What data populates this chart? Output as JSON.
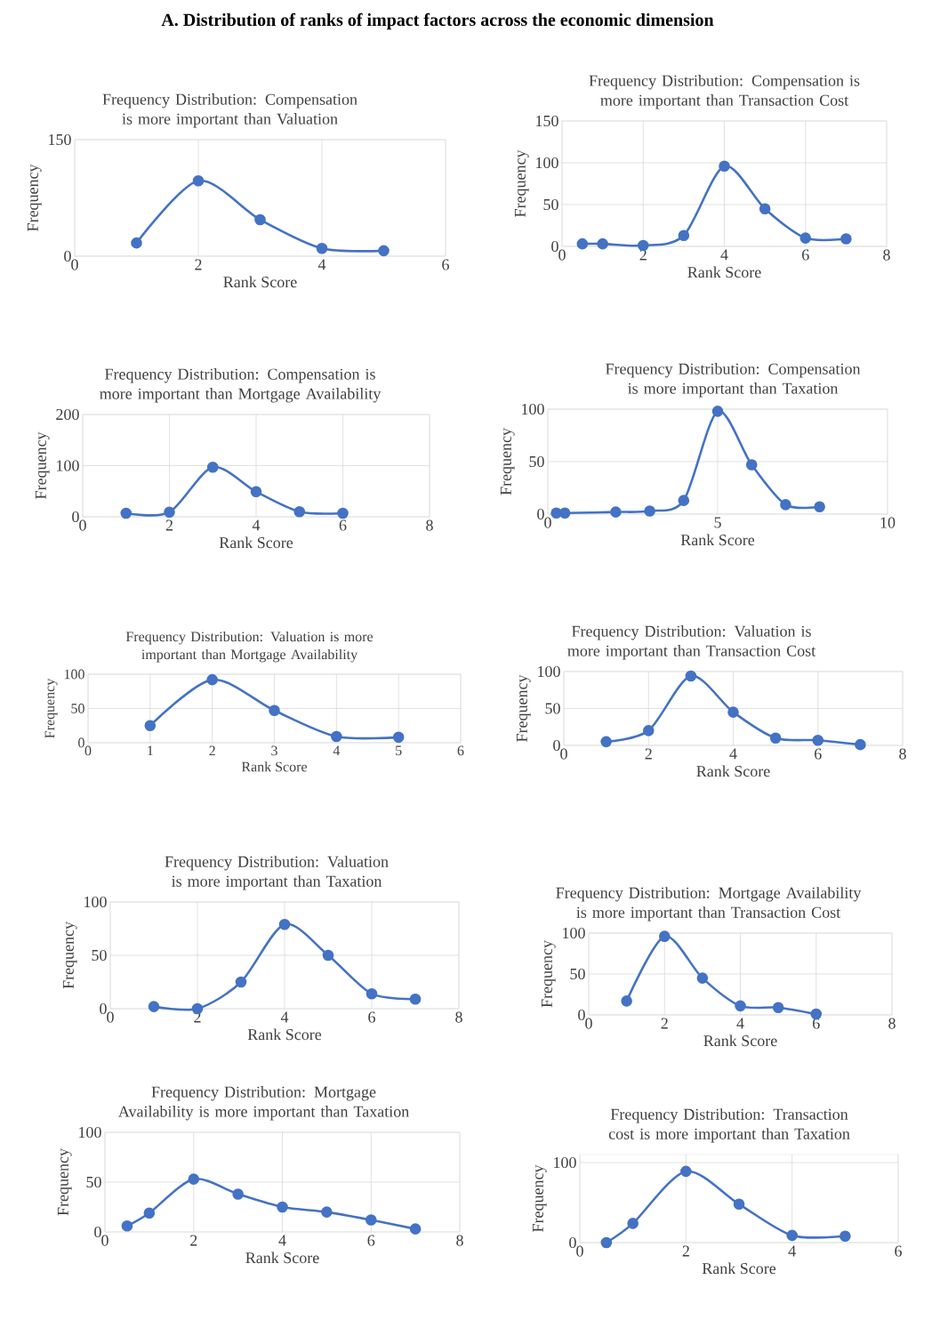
{
  "chart_data": [
    {
      "type": "line",
      "title": "Frequency Distribution: Compensation is more important than Valuation",
      "xlabel": "Rank Score",
      "ylabel": "Frequency",
      "annotations": [
        "A. Distribution of ranks of impact factors across the economic dimension"
      ],
      "x": [
        1,
        2,
        3,
        4,
        5
      ],
      "values": [
        17,
        97,
        47,
        10,
        7
      ],
      "color": "#4472c4",
      "xlim": [
        0,
        6
      ],
      "xticks": [
        0,
        2,
        4,
        6
      ],
      "ylim": [
        0,
        150
      ],
      "yticks": [
        0,
        150
      ],
      "grid": true,
      "marker": "circle"
    },
    {
      "type": "line",
      "title": "Frequency Distribution: Compensation is more important than Transaction Cost",
      "xlabel": "Rank Score",
      "ylabel": "Frequency",
      "x": [
        0.5,
        1,
        2,
        3,
        4,
        5,
        6,
        7
      ],
      "values": [
        3,
        3,
        1,
        13,
        96,
        45,
        10,
        9
      ],
      "color": "#4472c4",
      "xlim": [
        0,
        8
      ],
      "xticks": [
        0,
        2,
        4,
        6,
        8
      ],
      "ylim": [
        0,
        150
      ],
      "yticks": [
        0,
        50,
        100,
        150
      ],
      "grid": true,
      "marker": "circle"
    },
    {
      "type": "line",
      "title": "Frequency Distribution: Compensation is more important than Mortgage Availability",
      "xlabel": "Rank Score",
      "ylabel": "Frequency",
      "x": [
        1,
        2,
        3,
        4,
        5,
        6
      ],
      "values": [
        7,
        9,
        97,
        49,
        10,
        7
      ],
      "color": "#4472c4",
      "xlim": [
        0,
        8
      ],
      "xticks": [
        0,
        2,
        4,
        6,
        8
      ],
      "ylim": [
        0,
        200
      ],
      "yticks": [
        0,
        100,
        200
      ],
      "grid": true,
      "marker": "circle"
    },
    {
      "type": "line",
      "title": "Frequency Distribution: Compensation is more important than Taxation",
      "xlabel": "Rank Score",
      "ylabel": "Frequency",
      "x": [
        0.25,
        0.5,
        2,
        3,
        4,
        5,
        6,
        7,
        8
      ],
      "values": [
        1,
        1,
        2,
        3,
        13,
        98,
        47,
        9,
        7
      ],
      "color": "#4472c4",
      "xlim": [
        0,
        10
      ],
      "xticks": [
        0,
        5,
        10
      ],
      "ylim": [
        0,
        100
      ],
      "yticks": [
        0,
        50,
        100
      ],
      "grid": true,
      "marker": "circle"
    },
    {
      "type": "line",
      "title": "Frequency Distribution: Valuation is more important than Mortgage Availability",
      "xlabel": "Rank Score",
      "ylabel": "Frequency",
      "x": [
        1,
        2,
        3,
        4,
        5
      ],
      "values": [
        25,
        92,
        47,
        9,
        8
      ],
      "color": "#4472c4",
      "xlim": [
        0,
        6
      ],
      "xticks": [
        0,
        1,
        2,
        3,
        4,
        5,
        6
      ],
      "ylim": [
        0,
        100
      ],
      "yticks": [
        0,
        50,
        100
      ],
      "grid": true,
      "marker": "circle"
    },
    {
      "type": "line",
      "title": "Frequency Distribution: Valuation is more important than Transaction Cost",
      "xlabel": "Rank Score",
      "ylabel": "Frequency",
      "x": [
        1,
        2,
        3,
        4,
        5,
        6,
        7
      ],
      "values": [
        5,
        20,
        94,
        45,
        10,
        7,
        1
      ],
      "color": "#4472c4",
      "xlim": [
        0,
        8
      ],
      "xticks": [
        0,
        2,
        4,
        6,
        8
      ],
      "ylim": [
        0,
        100
      ],
      "yticks": [
        0,
        50,
        100
      ],
      "grid": true,
      "marker": "circle"
    },
    {
      "type": "line",
      "title": "Frequency Distribution: Valuation is more important than Taxation",
      "xlabel": "Rank Score",
      "ylabel": "Frequency",
      "x": [
        1,
        2,
        3,
        4,
        5,
        6,
        7
      ],
      "values": [
        2,
        0,
        25,
        79,
        50,
        14,
        9
      ],
      "color": "#4472c4",
      "xlim": [
        0,
        8
      ],
      "xticks": [
        0,
        2,
        4,
        6,
        8
      ],
      "ylim": [
        0,
        100
      ],
      "yticks": [
        0,
        50,
        100
      ],
      "grid": true,
      "marker": "circle"
    },
    {
      "type": "line",
      "title": "Frequency Distribution: Mortgage Availability is more important than Transaction Cost",
      "xlabel": "Rank Score",
      "ylabel": "Frequency",
      "x": [
        1,
        2,
        3,
        4,
        5,
        6
      ],
      "values": [
        17,
        96,
        45,
        11,
        9,
        1
      ],
      "color": "#4472c4",
      "xlim": [
        0,
        8
      ],
      "xticks": [
        0,
        2,
        4,
        6,
        8
      ],
      "ylim": [
        0,
        100
      ],
      "yticks": [
        0,
        50,
        100
      ],
      "grid": true,
      "marker": "circle"
    },
    {
      "type": "line",
      "title": "Frequency Distribution: Mortgage Availability is more important than Taxation",
      "xlabel": "Rank Score",
      "ylabel": "Frequency",
      "x": [
        0.5,
        1,
        2,
        3,
        4,
        5,
        6,
        7
      ],
      "values": [
        6,
        19,
        53,
        38,
        25,
        20,
        12,
        3
      ],
      "color": "#4472c4",
      "xlim": [
        0,
        8
      ],
      "xticks": [
        0,
        2,
        4,
        6,
        8
      ],
      "ylim": [
        0,
        100
      ],
      "yticks": [
        0,
        50,
        100
      ],
      "grid": true,
      "marker": "circle"
    },
    {
      "type": "line",
      "title": "Frequency Distribution: Transaction cost is more important than Taxation",
      "xlabel": "Rank Score",
      "ylabel": "Frequency",
      "x": [
        0.5,
        1,
        2,
        3,
        4,
        5
      ],
      "values": [
        0,
        24,
        89,
        48,
        9,
        8
      ],
      "color": "#4472c4",
      "xlim": [
        0,
        6
      ],
      "xticks": [
        0,
        2,
        4,
        6
      ],
      "ylim": [
        0,
        110
      ],
      "yticks": [
        0,
        100
      ],
      "grid": true,
      "marker": "circle"
    }
  ]
}
